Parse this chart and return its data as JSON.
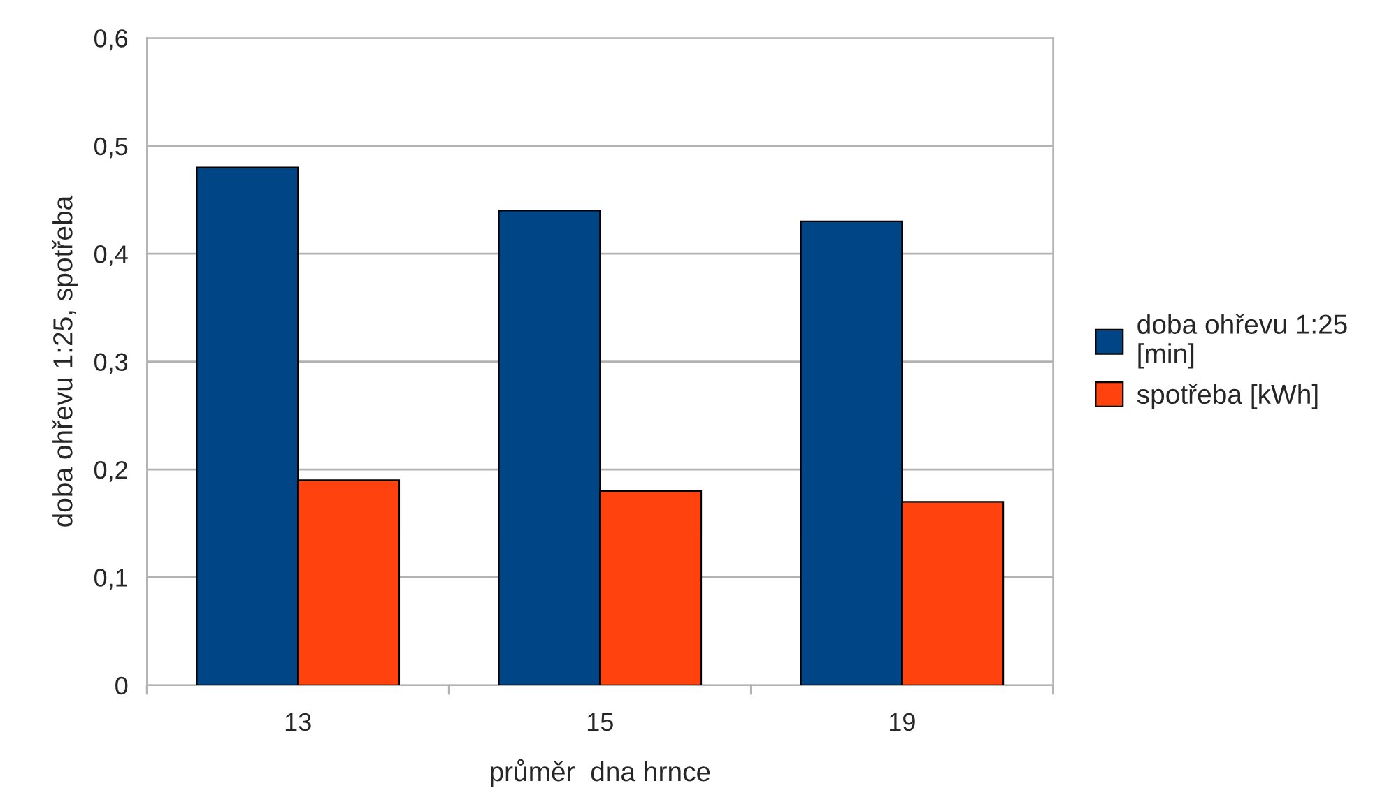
{
  "chart_data": {
    "type": "bar",
    "xlabel": "průměr  dna hrnce",
    "ylabel": "doba ohřevu 1:25, spotřeba",
    "categories": [
      "13",
      "15",
      "19"
    ],
    "series": [
      {
        "name": "doba ohřevu 1:25\n[min]",
        "color": "#004586",
        "values": [
          0.48,
          0.44,
          0.43
        ]
      },
      {
        "name": "spotřeba [kWh]",
        "color": "#ff420e",
        "values": [
          0.19,
          0.18,
          0.17
        ]
      }
    ],
    "ylim": [
      0,
      0.6
    ],
    "yticks": [
      0,
      {
        "value": 0.1,
        "label": "0,1"
      },
      {
        "value": 0.2,
        "label": "0,2"
      },
      {
        "value": 0.3,
        "label": "0,3"
      },
      {
        "value": 0.4,
        "label": "0,4"
      },
      {
        "value": 0.5,
        "label": "0,5"
      },
      {
        "value": 0.6,
        "label": "0,6"
      }
    ],
    "grid": "y",
    "legend": "right"
  }
}
